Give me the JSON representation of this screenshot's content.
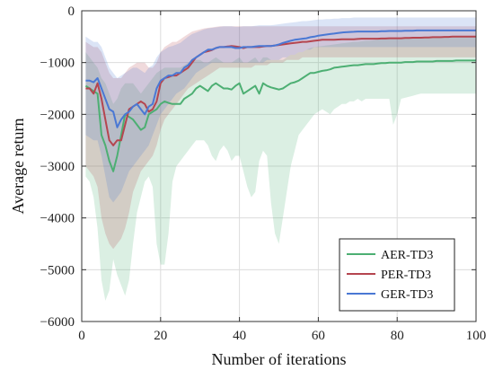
{
  "chart_data": {
    "type": "line",
    "xlabel": "Number of iterations",
    "ylabel": "Average return",
    "xlim": [
      0,
      100
    ],
    "ylim": [
      -6000,
      0
    ],
    "xticks": [
      0,
      20,
      40,
      60,
      80,
      100
    ],
    "yticks": [
      -6000,
      -5000,
      -4000,
      -3000,
      -2000,
      -1000,
      0
    ],
    "xtick_labels": [
      "0",
      "20",
      "40",
      "60",
      "80",
      "100"
    ],
    "ytick_labels": [
      "−6000",
      "−5000",
      "−4000",
      "−3000",
      "−2000",
      "−1000",
      "0"
    ],
    "grid": true,
    "legend_position": "lower-right",
    "x": [
      1,
      2,
      3,
      4,
      5,
      6,
      7,
      8,
      9,
      10,
      11,
      12,
      13,
      14,
      15,
      16,
      17,
      18,
      19,
      20,
      21,
      22,
      23,
      24,
      25,
      26,
      27,
      28,
      29,
      30,
      31,
      32,
      33,
      34,
      35,
      36,
      37,
      38,
      39,
      40,
      41,
      42,
      43,
      44,
      45,
      46,
      47,
      48,
      49,
      50,
      51,
      52,
      53,
      54,
      55,
      56,
      57,
      58,
      59,
      60,
      61,
      62,
      63,
      64,
      65,
      66,
      67,
      68,
      69,
      70,
      71,
      72,
      73,
      74,
      75,
      76,
      77,
      78,
      79,
      80,
      81,
      82,
      83,
      84,
      85,
      86,
      87,
      88,
      89,
      90,
      91,
      92,
      93,
      94,
      95,
      96,
      97,
      98,
      99,
      100
    ],
    "series": [
      {
        "name": "AER-TD3",
        "color": "#4daf73",
        "values": [
          -1450,
          -1500,
          -1550,
          -1600,
          -2400,
          -2600,
          -2900,
          -3100,
          -2800,
          -2400,
          -2000,
          -2050,
          -2100,
          -2200,
          -2300,
          -2250,
          -2000,
          -1950,
          -1900,
          -1800,
          -1750,
          -1780,
          -1800,
          -1800,
          -1800,
          -1700,
          -1650,
          -1600,
          -1500,
          -1450,
          -1500,
          -1550,
          -1450,
          -1400,
          -1450,
          -1500,
          -1500,
          -1520,
          -1450,
          -1400,
          -1600,
          -1550,
          -1500,
          -1450,
          -1600,
          -1400,
          -1450,
          -1480,
          -1500,
          -1520,
          -1500,
          -1450,
          -1400,
          -1380,
          -1350,
          -1300,
          -1250,
          -1200,
          -1200,
          -1180,
          -1160,
          -1150,
          -1130,
          -1100,
          -1090,
          -1080,
          -1070,
          -1060,
          -1050,
          -1050,
          -1040,
          -1030,
          -1030,
          -1030,
          -1020,
          -1010,
          -1010,
          -1000,
          -1000,
          -1000,
          -1000,
          -990,
          -990,
          -990,
          -980,
          -980,
          -980,
          -980,
          -980,
          -970,
          -970,
          -970,
          -970,
          -970,
          -960,
          -960,
          -960,
          -960,
          -960,
          -960
        ],
        "band_lower": [
          -3200,
          -3300,
          -3600,
          -4200,
          -5200,
          -5600,
          -5400,
          -4800,
          -5100,
          -5300,
          -5500,
          -5200,
          -4500,
          -3900,
          -3600,
          -3300,
          -3200,
          -3400,
          -4500,
          -4900,
          -4900,
          -4300,
          -3300,
          -3000,
          -2900,
          -2800,
          -2700,
          -2600,
          -2500,
          -2500,
          -2500,
          -2600,
          -2800,
          -2900,
          -2700,
          -2600,
          -2700,
          -2900,
          -2800,
          -2800,
          -3100,
          -3400,
          -3600,
          -3500,
          -2900,
          -2700,
          -2800,
          -3700,
          -4300,
          -4500,
          -4000,
          -3500,
          -3000,
          -2700,
          -2400,
          -2300,
          -2200,
          -2100,
          -2000,
          -1950,
          -1900,
          -1950,
          -2000,
          -1900,
          -1850,
          -1800,
          -1800,
          -1750,
          -1750,
          -1700,
          -1750,
          -1700,
          -1700,
          -1700,
          -1700,
          -1700,
          -1700,
          -1700,
          -2200,
          -2000,
          -1700,
          -1680,
          -1660,
          -1640,
          -1620,
          -1600,
          -1600,
          -1600,
          -1600,
          -1600,
          -1600,
          -1600,
          -1600,
          -1600,
          -1600,
          -1600,
          -1600,
          -1600,
          -1600,
          -1600
        ],
        "band_upper": [
          -800,
          -900,
          -1000,
          -1100,
          -1300,
          -1400,
          -1600,
          -1800,
          -1700,
          -1500,
          -1400,
          -1400,
          -1400,
          -1500,
          -1600,
          -1500,
          -1400,
          -1300,
          -1200,
          -1150,
          -1100,
          -1100,
          -1100,
          -1100,
          -1100,
          -1050,
          -1000,
          -1000,
          -950,
          -950,
          -1000,
          -1000,
          -950,
          -900,
          -950,
          -1000,
          -1000,
          -1000,
          -950,
          -900,
          -1000,
          -1000,
          -950,
          -900,
          -1000,
          -900,
          -900,
          -950,
          -950,
          -950,
          -950,
          -900,
          -850,
          -850,
          -800,
          -800,
          -750,
          -720,
          -700,
          -690,
          -680,
          -670,
          -660,
          -650,
          -640,
          -630,
          -620,
          -610,
          -600,
          -600,
          -590,
          -580,
          -580,
          -570,
          -560,
          -550,
          -550,
          -540,
          -540,
          -540,
          -530,
          -530,
          -520,
          -520,
          -520,
          -510,
          -510,
          -510,
          -500,
          -500,
          -500,
          -500,
          -500,
          -500,
          -500,
          -500,
          -500,
          -500,
          -500,
          -500
        ]
      },
      {
        "name": "PER-TD3",
        "color": "#b5454f",
        "values": [
          -1500,
          -1500,
          -1600,
          -1400,
          -1700,
          -2100,
          -2500,
          -2600,
          -2500,
          -2500,
          -2200,
          -1900,
          -1850,
          -1800,
          -1750,
          -1800,
          -1950,
          -1900,
          -1750,
          -1400,
          -1300,
          -1280,
          -1250,
          -1250,
          -1200,
          -1150,
          -1100,
          -1000,
          -900,
          -850,
          -800,
          -780,
          -760,
          -720,
          -700,
          -700,
          -690,
          -680,
          -690,
          -700,
          -720,
          -700,
          -700,
          -700,
          -700,
          -690,
          -680,
          -680,
          -670,
          -660,
          -650,
          -640,
          -630,
          -620,
          -610,
          -600,
          -600,
          -590,
          -580,
          -570,
          -560,
          -560,
          -560,
          -560,
          -555,
          -550,
          -550,
          -550,
          -550,
          -545,
          -540,
          -540,
          -540,
          -540,
          -540,
          -535,
          -535,
          -530,
          -530,
          -530,
          -530,
          -525,
          -525,
          -520,
          -520,
          -520,
          -515,
          -515,
          -510,
          -510,
          -510,
          -505,
          -505,
          -500,
          -500,
          -500,
          -500,
          -500,
          -500,
          -500
        ],
        "band_lower": [
          -3000,
          -3100,
          -3200,
          -3400,
          -4000,
          -4300,
          -4500,
          -4600,
          -4500,
          -4400,
          -4200,
          -3900,
          -3500,
          -3300,
          -3100,
          -3000,
          -2900,
          -2800,
          -2600,
          -2300,
          -2100,
          -2000,
          -1900,
          -1800,
          -1700,
          -1600,
          -1500,
          -1450,
          -1400,
          -1350,
          -1300,
          -1250,
          -1200,
          -1150,
          -1100,
          -1100,
          -1100,
          -1100,
          -1100,
          -1100,
          -1100,
          -1100,
          -1100,
          -1050,
          -1050,
          -1050,
          -1050,
          -1000,
          -1000,
          -1000,
          -1000,
          -950,
          -950,
          -950,
          -950,
          -900,
          -900,
          -900,
          -900,
          -900,
          -900,
          -900,
          -900,
          -900,
          -900,
          -900,
          -900,
          -900,
          -900,
          -900,
          -900,
          -900,
          -900,
          -900,
          -900,
          -900,
          -900,
          -900,
          -900,
          -900,
          -900,
          -900,
          -900,
          -900,
          -900,
          -900,
          -900,
          -900,
          -900,
          -900,
          -900,
          -900,
          -900,
          -900,
          -900,
          -900,
          -900,
          -900,
          -900,
          -900
        ],
        "band_upper": [
          -600,
          -650,
          -700,
          -700,
          -800,
          -1000,
          -1200,
          -1300,
          -1300,
          -1300,
          -1200,
          -1100,
          -1050,
          -1000,
          -1000,
          -1000,
          -1100,
          -1100,
          -1000,
          -800,
          -700,
          -650,
          -600,
          -600,
          -550,
          -500,
          -450,
          -400,
          -380,
          -360,
          -340,
          -330,
          -320,
          -310,
          -300,
          -300,
          -300,
          -300,
          -300,
          -300,
          -300,
          -300,
          -300,
          -300,
          -300,
          -300,
          -300,
          -300,
          -300,
          -300,
          -300,
          -300,
          -300,
          -300,
          -300,
          -300,
          -300,
          -300,
          -300,
          -300,
          -300,
          -300,
          -300,
          -300,
          -300,
          -300,
          -300,
          -300,
          -300,
          -300,
          -300,
          -300,
          -300,
          -300,
          -300,
          -300,
          -300,
          -300,
          -300,
          -300,
          -300,
          -300,
          -300,
          -300,
          -300,
          -300,
          -300,
          -300,
          -300,
          -300,
          -300,
          -300,
          -300,
          -300,
          -300,
          -300,
          -300,
          -300,
          -300,
          -300
        ]
      },
      {
        "name": "GER-TD3",
        "color": "#4a78d4",
        "values": [
          -1350,
          -1350,
          -1380,
          -1300,
          -1500,
          -1700,
          -1900,
          -1950,
          -2250,
          -2100,
          -2000,
          -1950,
          -1850,
          -1800,
          -1900,
          -2000,
          -1850,
          -1800,
          -1500,
          -1350,
          -1300,
          -1250,
          -1250,
          -1200,
          -1200,
          -1100,
          -1050,
          -950,
          -900,
          -850,
          -800,
          -750,
          -750,
          -720,
          -700,
          -700,
          -700,
          -700,
          -720,
          -720,
          -700,
          -700,
          -700,
          -690,
          -680,
          -680,
          -680,
          -680,
          -670,
          -650,
          -620,
          -600,
          -580,
          -560,
          -550,
          -540,
          -530,
          -510,
          -500,
          -480,
          -470,
          -460,
          -450,
          -440,
          -430,
          -420,
          -415,
          -410,
          -405,
          -400,
          -400,
          -400,
          -400,
          -400,
          -400,
          -395,
          -395,
          -390,
          -390,
          -390,
          -390,
          -385,
          -385,
          -385,
          -380,
          -380,
          -380,
          -380,
          -380,
          -380,
          -380,
          -380,
          -380,
          -380,
          -380,
          -380,
          -380,
          -380,
          -380,
          -380
        ],
        "band_lower": [
          -2400,
          -2450,
          -2500,
          -2500,
          -2800,
          -3200,
          -3600,
          -3700,
          -3600,
          -3500,
          -3300,
          -3100,
          -3000,
          -2900,
          -2800,
          -2700,
          -2600,
          -2400,
          -2200,
          -2000,
          -1900,
          -1800,
          -1700,
          -1600,
          -1550,
          -1500,
          -1400,
          -1300,
          -1200,
          -1150,
          -1100,
          -1050,
          -1000,
          -1000,
          -1000,
          -1000,
          -1000,
          -1000,
          -1000,
          -1000,
          -1000,
          -1000,
          -1000,
          -1000,
          -1000,
          -1000,
          -950,
          -950,
          -950,
          -950,
          -900,
          -900,
          -850,
          -850,
          -800,
          -800,
          -750,
          -750,
          -700,
          -700,
          -700,
          -700,
          -700,
          -700,
          -700,
          -700,
          -700,
          -700,
          -700,
          -700,
          -700,
          -700,
          -700,
          -700,
          -700,
          -700,
          -700,
          -700,
          -700,
          -700,
          -700,
          -700,
          -700,
          -700,
          -700,
          -700,
          -700,
          -700,
          -700,
          -700,
          -700,
          -700,
          -700,
          -700,
          -700,
          -700,
          -700,
          -700,
          -700,
          -700
        ],
        "band_upper": [
          -500,
          -550,
          -600,
          -600,
          -700,
          -900,
          -1100,
          -1200,
          -1300,
          -1250,
          -1200,
          -1150,
          -1100,
          -1100,
          -1150,
          -1200,
          -1100,
          -1050,
          -900,
          -800,
          -750,
          -700,
          -680,
          -650,
          -620,
          -560,
          -500,
          -450,
          -420,
          -390,
          -360,
          -340,
          -330,
          -320,
          -310,
          -300,
          -300,
          -300,
          -310,
          -310,
          -300,
          -300,
          -300,
          -290,
          -280,
          -280,
          -280,
          -280,
          -270,
          -260,
          -250,
          -240,
          -230,
          -220,
          -210,
          -200,
          -200,
          -190,
          -180,
          -170,
          -170,
          -160,
          -160,
          -150,
          -150,
          -140,
          -140,
          -140,
          -130,
          -130,
          -130,
          -130,
          -130,
          -130,
          -130,
          -130,
          -130,
          -130,
          -130,
          -130,
          -130,
          -130,
          -130,
          -130,
          -130,
          -130,
          -130,
          -130,
          -130,
          -130,
          -130,
          -130,
          -130,
          -130,
          -130,
          -130,
          -130,
          -130,
          -130,
          -130
        ]
      }
    ]
  }
}
